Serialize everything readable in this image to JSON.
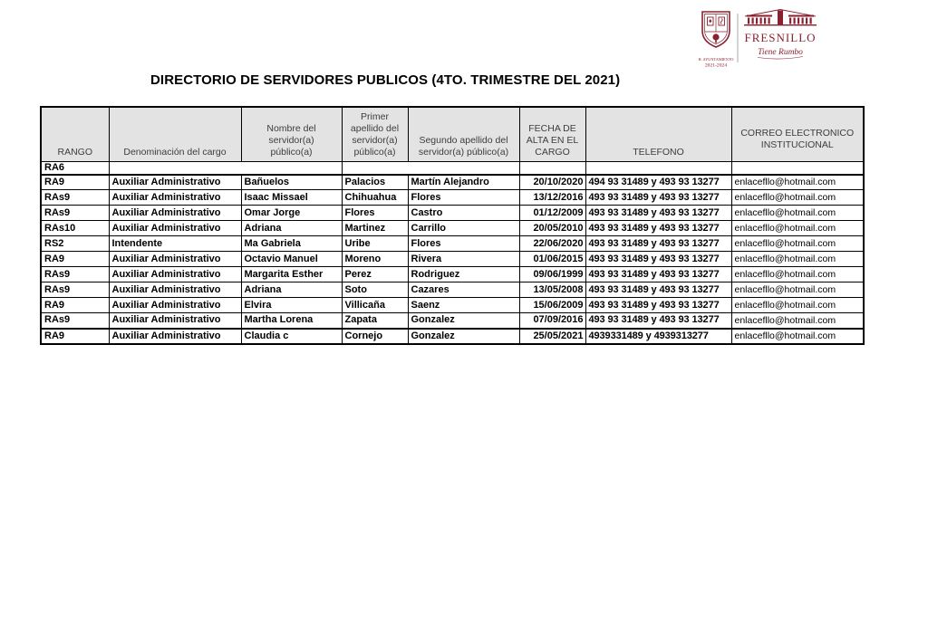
{
  "page": {
    "title": "DIRECTORIO DE SERVIDORES PUBLICOS (4TO. TRIMESTRE DEL 2021)"
  },
  "colors": {
    "brand_maroon": "#8a2130",
    "header_bg": "#e3e3e3",
    "divider_gray": "#aaaaaa"
  },
  "logo": {
    "crest_caption": "H. AYUNTAMIENTO",
    "crest_years": "2021-2024",
    "brand_name": "FRESNILLO",
    "brand_tagline": "Tiene Rumbo"
  },
  "table": {
    "columns": [
      {
        "label": "RANGO"
      },
      {
        "label": "Denominación del cargo"
      },
      {
        "label": "Nombre del\nservidor(a)\npúblico(a)"
      },
      {
        "label": "Primer\napellido del\nservidor(a)\npúblico(a)"
      },
      {
        "label": "Segundo apellido del\nservidor(a) público(a)"
      },
      {
        "label": "FECHA DE\nALTA EN EL\nCARGO"
      },
      {
        "label": "TELEFONO"
      },
      {
        "label": "CORREO ELECTRONICO\nINSTITUCIONAL"
      }
    ],
    "rows": [
      {
        "cells": [
          "RA6",
          "",
          "",
          "",
          "",
          ""
        ],
        "colspans": [
          1,
          2,
          2,
          1,
          1,
          1
        ]
      },
      {
        "cells": [
          "RA9",
          "Auxiliar Administrativo",
          "Bañuelos",
          "Palacios",
          "Martín Alejandro",
          "20/10/2020",
          "494 93 31489 y 493 93 13277",
          "enlacefllo@hotmail.com"
        ]
      },
      {
        "cells": [
          "RAs9",
          "Auxiliar Administrativo",
          "Isaac Missael",
          "Chihuahua",
          "Flores",
          "13/12/2016",
          "493 93 31489 y 493 93 13277",
          "enlacefllo@hotmail.com"
        ]
      },
      {
        "cells": [
          "RAs9",
          "Auxiliar Administrativo",
          "Omar Jorge",
          "Flores",
          "Castro",
          "01/12/2009",
          "493 93 31489 y 493 93 13277",
          "enlacefllo@hotmail.com"
        ]
      },
      {
        "cells": [
          "RAs10",
          "Auxiliar Administrativo",
          "Adriana",
          "Martinez",
          "Carrillo",
          "20/05/2010",
          "493 93 31489 y 493 93 13277",
          "enlacefllo@hotmail.com"
        ]
      },
      {
        "cells": [
          "RS2",
          "Intendente",
          "Ma Gabriela",
          "Uribe",
          "Flores",
          "22/06/2020",
          "493 93 31489 y 493 93 13277",
          "enlacefllo@hotmail.com"
        ]
      },
      {
        "cells": [
          "RA9",
          "Auxiliar Administrativo",
          "Octavio Manuel",
          "Moreno",
          "Rivera",
          "01/06/2015",
          "493 93 31489 y 493 93 13277",
          "enlacefllo@hotmail.com"
        ]
      },
      {
        "cells": [
          "RAs9",
          "Auxiliar Administrativo",
          "Margarita Esther",
          "Perez",
          "Rodriguez",
          "09/06/1999",
          "493 93 31489 y 493 93 13277",
          "enlacefllo@hotmail.com"
        ]
      },
      {
        "cells": [
          "RAs9",
          "Auxiliar Administrativo",
          "Adriana",
          "Soto",
          "Cazares",
          "13/05/2008",
          "493 93 31489 y 493 93 13277",
          "enlacefllo@hotmail.com"
        ]
      },
      {
        "cells": [
          "RA9",
          "Auxiliar Administrativo",
          "Elvira",
          "Villicaña",
          "Saenz",
          "15/06/2009",
          "493 93 31489 y 493 93 13277",
          "enlacefllo@hotmail.com"
        ]
      },
      {
        "cells": [
          "RAs9",
          "Auxiliar Administrativo",
          "Martha Lorena",
          "Zapata",
          "Gonzalez",
          "07/09/2016",
          "493 93 31489 y 493 93 13277",
          "enlacefllo@hotmail.com"
        ]
      },
      {
        "cells": [
          "RA9",
          "Auxiliar Administrativo",
          "Claudia c",
          "Cornejo",
          "Gonzalez",
          "25/05/2021",
          "4939331489 y 4939313277",
          "enlacefllo@hotmail.com"
        ]
      }
    ]
  }
}
